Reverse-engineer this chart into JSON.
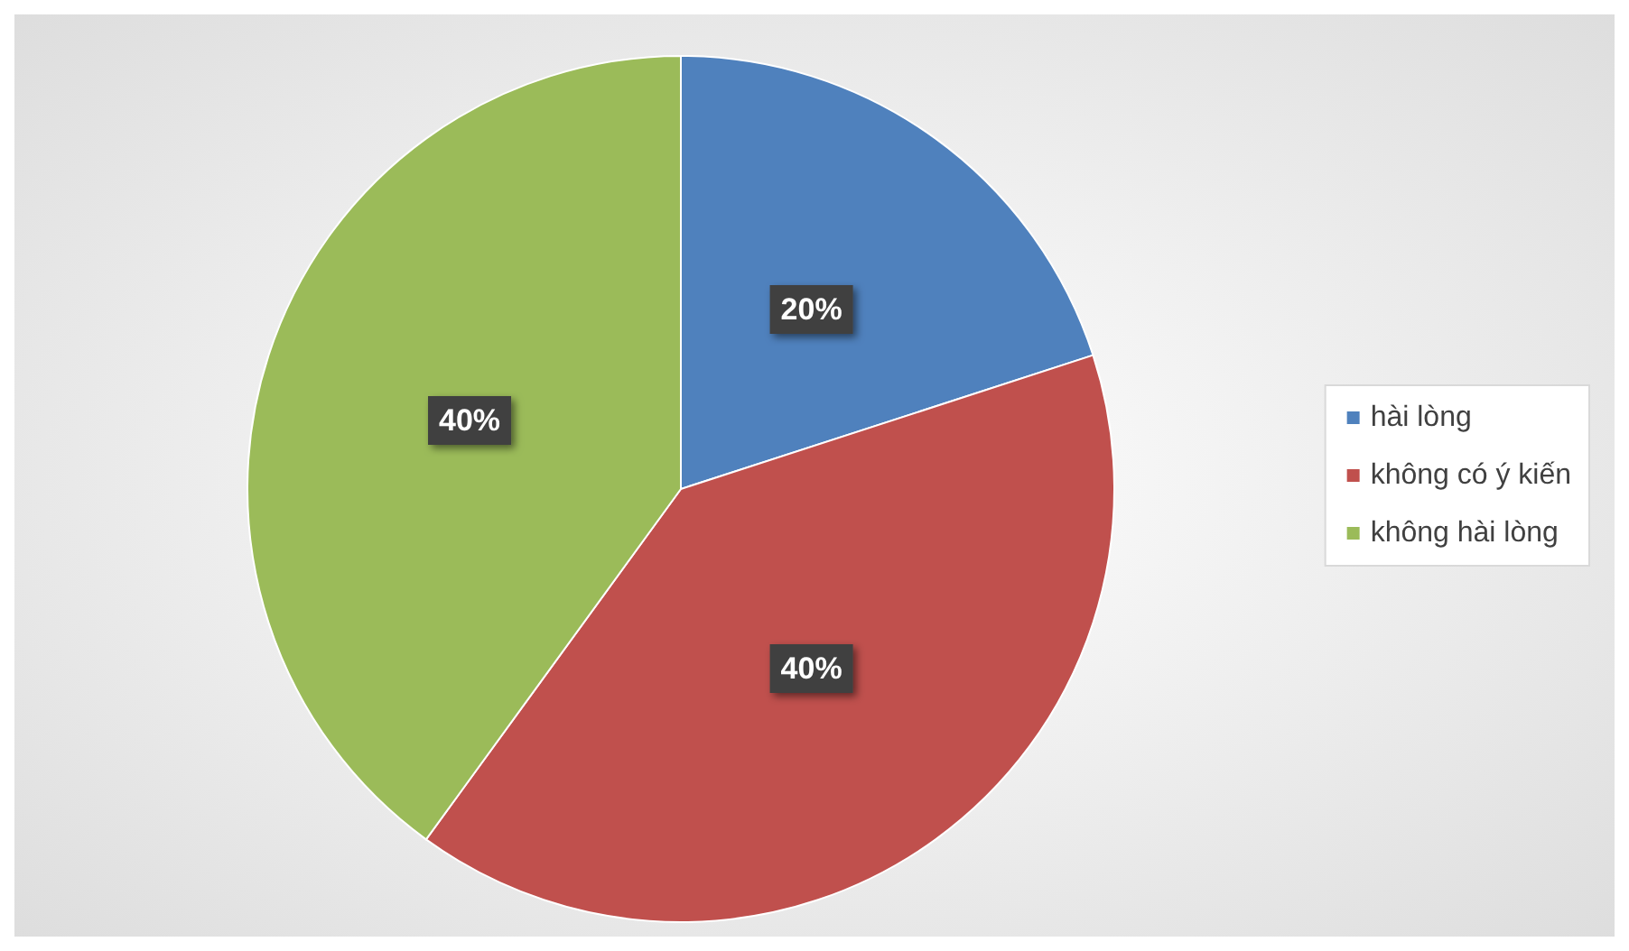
{
  "chart_data": {
    "type": "pie",
    "categories": [
      "hài lòng",
      "không có ý kiến",
      "không hài lòng"
    ],
    "values": [
      20,
      40,
      40
    ],
    "colors": [
      "#4f81bd",
      "#c0504d",
      "#9bbb59"
    ],
    "value_labels": [
      "20%",
      "40%",
      "40%"
    ],
    "legend": "right"
  }
}
